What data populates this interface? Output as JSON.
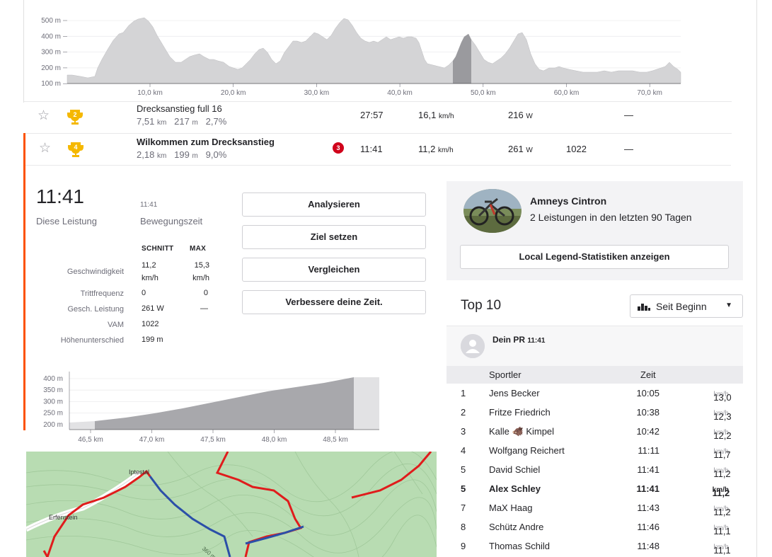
{
  "elevation_chart": {
    "y_ticks": [
      "500 m",
      "400 m",
      "300 m",
      "200 m",
      "100 m"
    ],
    "x_ticks": [
      "10,0 km",
      "20,0 km",
      "30,0 km",
      "40,0 km",
      "50,0 km",
      "60,0 km",
      "70,0 km"
    ]
  },
  "segments": [
    {
      "name": "Drecksanstieg full 16",
      "distance": "7,51",
      "distance_unit": "km",
      "elevation": "217",
      "elevation_unit": "m",
      "grade": "2,7%",
      "trophy_rank": "2",
      "time": "27:57",
      "speed": "16,1",
      "speed_unit": "km/h",
      "power": "216",
      "power_unit": "W",
      "vam": "",
      "hr": "—"
    },
    {
      "name": "Wilkommen zum Drecksanstieg",
      "distance": "2,18",
      "distance_unit": "km",
      "elevation": "199",
      "elevation_unit": "m",
      "grade": "9,0%",
      "trophy_rank": "4",
      "rank_badge": "3",
      "time": "11:41",
      "speed": "11,2",
      "speed_unit": "km/h",
      "power": "261",
      "power_unit": "W",
      "vam": "1022",
      "hr": "—"
    }
  ],
  "detail": {
    "big_time": "11:41",
    "this_effort_label": "Diese Leistung",
    "moving_time_value": "11:41",
    "moving_time_label": "Bewegungszeit",
    "col_avg": "SCHNITT",
    "col_max": "MAX",
    "rows": [
      {
        "label": "Geschwindigkeit",
        "avg": "11,2",
        "avg_unit": "km/h",
        "max": "15,3",
        "max_unit": "km/h"
      },
      {
        "label": "Trittfrequenz",
        "avg": "0",
        "max": "0"
      },
      {
        "label": "Gesch. Leistung",
        "avg": "261 W",
        "max": "—"
      },
      {
        "label": "VAM",
        "avg": "1022",
        "max": ""
      },
      {
        "label": "Höhenunterschied",
        "avg": "199 m",
        "max": ""
      }
    ],
    "buttons": [
      "Analysieren",
      "Ziel setzen",
      "Vergleichen",
      "Verbessere deine Zeit."
    ]
  },
  "segment_chart": {
    "y_ticks": [
      "400 m",
      "350 m",
      "300 m",
      "250 m",
      "200 m"
    ],
    "x_ticks": [
      "46,5 km",
      "47,0 km",
      "47,5 km",
      "48,0 km",
      "48,5 km"
    ]
  },
  "map": {
    "labels": [
      "Iptestal",
      "Erfenstein",
      "360 m"
    ]
  },
  "local_legend": {
    "name": "Amneys Cintron",
    "subtitle": "2 Leistungen in den letzten 90 Tagen",
    "button": "Local Legend-Statistiken anzeigen"
  },
  "top10": {
    "title": "Top 10",
    "filter": "Seit Beginn",
    "pr_label": "Dein PR",
    "pr_time": "11:41",
    "col_athlete": "Sportler",
    "col_time": "Zeit",
    "rows": [
      {
        "rank": "1",
        "name": "Jens Becker",
        "time": "10:05",
        "speed": "13,0",
        "unit": "km/h",
        "me": false
      },
      {
        "rank": "2",
        "name": "Fritze Friedrich",
        "time": "10:38",
        "speed": "12,3",
        "unit": "km/h",
        "me": false
      },
      {
        "rank": "3",
        "name": "Kalle 🐗 Kimpel",
        "time": "10:42",
        "speed": "12,2",
        "unit": "km/h",
        "me": false
      },
      {
        "rank": "4",
        "name": "Wolfgang Reichert",
        "time": "11:11",
        "speed": "11,7",
        "unit": "km/h",
        "me": false
      },
      {
        "rank": "5",
        "name": "David Schiel",
        "time": "11:41",
        "speed": "11,2",
        "unit": "km/h",
        "me": false
      },
      {
        "rank": "5",
        "name": "Alex Schley",
        "time": "11:41",
        "speed": "11,2",
        "unit": "km/h",
        "me": true
      },
      {
        "rank": "7",
        "name": "MaX Haag",
        "time": "11:43",
        "speed": "11,2",
        "unit": "km/h",
        "me": false
      },
      {
        "rank": "8",
        "name": "Schütz Andre",
        "time": "11:46",
        "speed": "11,1",
        "unit": "km/h",
        "me": false
      },
      {
        "rank": "9",
        "name": "Thomas Schild",
        "time": "11:48",
        "speed": "11,1",
        "unit": "km/h",
        "me": false
      }
    ]
  },
  "colors": {
    "accent": "#fc5200",
    "trophy": "#f5b800",
    "route_red": "#e01c1c",
    "route_blue": "#2b4fa8",
    "map_green": "#b5dbb0"
  }
}
